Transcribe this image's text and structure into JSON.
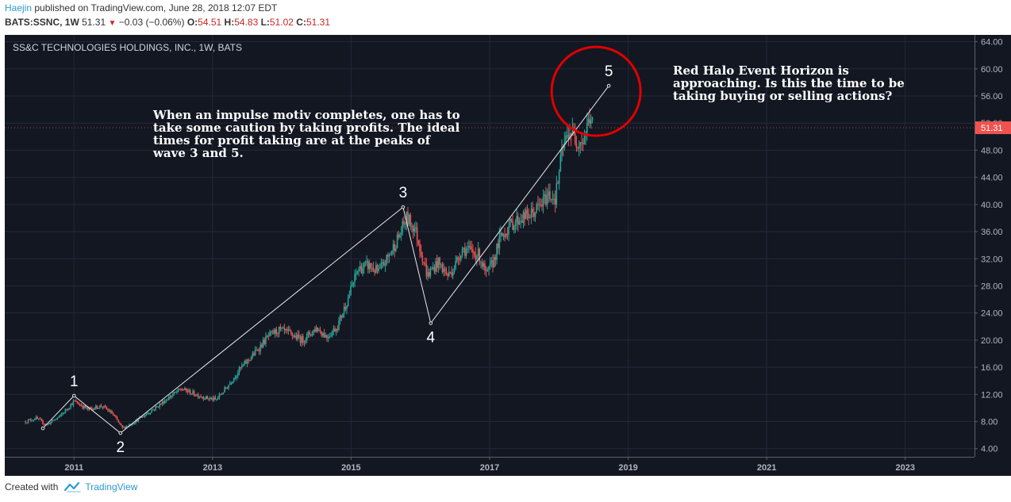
{
  "header": {
    "author": "Haejin",
    "published_text": "published on TradingView.com, June 28, 2018 12:07 EDT",
    "symbol_line": "BATS:SSNC, 1W",
    "last": "51.31",
    "change": "−0.03 (−0.06%)",
    "o_label": "O:",
    "o": "54.51",
    "h_label": "H:",
    "h": "54.83",
    "l_label": "L:",
    "l": "51.02",
    "c_label": "C:",
    "c": "51.31"
  },
  "footer": {
    "created_with": "Created with",
    "brand": "TradingView"
  },
  "colors": {
    "background": "#131722",
    "up": "#26a69a",
    "down": "#ef5350",
    "wave_line": "#e8e8e8",
    "halo": "#e00000",
    "price_badge": "#ef5350"
  },
  "chart_data": {
    "type": "candlestick",
    "title": "SS&C TECHNOLOGIES HOLDINGS, INC., 1W, BATS",
    "x_ticks": [
      "2011",
      "2013",
      "2015",
      "2017",
      "2019",
      "2021",
      "2023"
    ],
    "y_ticks": [
      "4.00",
      "8.00",
      "12.00",
      "16.00",
      "20.00",
      "24.00",
      "28.00",
      "32.00",
      "36.00",
      "40.00",
      "44.00",
      "48.00",
      "52.00",
      "56.00",
      "60.00",
      "64.00"
    ],
    "xlim": [
      2010.0,
      2024.0
    ],
    "ylim": [
      2.8,
      65.0
    ],
    "last_price": "51.31",
    "price_path": [
      [
        2010.3,
        8.0
      ],
      [
        2010.45,
        8.5
      ],
      [
        2010.6,
        7.5
      ],
      [
        2010.8,
        8.8
      ],
      [
        2011.0,
        11.0
      ],
      [
        2011.2,
        9.8
      ],
      [
        2011.4,
        10.3
      ],
      [
        2011.55,
        9.2
      ],
      [
        2011.7,
        7.0
      ],
      [
        2011.85,
        7.8
      ],
      [
        2012.0,
        8.8
      ],
      [
        2012.2,
        10.2
      ],
      [
        2012.4,
        11.8
      ],
      [
        2012.55,
        12.8
      ],
      [
        2012.7,
        12.2
      ],
      [
        2012.9,
        11.5
      ],
      [
        2013.05,
        11.2
      ],
      [
        2013.2,
        13.0
      ],
      [
        2013.4,
        15.8
      ],
      [
        2013.6,
        18.0
      ],
      [
        2013.8,
        20.5
      ],
      [
        2013.95,
        21.5
      ],
      [
        2014.1,
        21.0
      ],
      [
        2014.3,
        20.0
      ],
      [
        2014.5,
        21.8
      ],
      [
        2014.65,
        20.5
      ],
      [
        2014.8,
        22.0
      ],
      [
        2014.95,
        26.0
      ],
      [
        2015.1,
        30.5
      ],
      [
        2015.25,
        31.0
      ],
      [
        2015.4,
        30.0
      ],
      [
        2015.55,
        32.5
      ],
      [
        2015.7,
        35.5
      ],
      [
        2015.8,
        38.0
      ],
      [
        2015.92,
        36.5
      ],
      [
        2016.0,
        33.5
      ],
      [
        2016.1,
        29.5
      ],
      [
        2016.25,
        31.5
      ],
      [
        2016.4,
        29.5
      ],
      [
        2016.5,
        31.0
      ],
      [
        2016.6,
        33.5
      ],
      [
        2016.75,
        33.0
      ],
      [
        2016.85,
        32.5
      ],
      [
        2016.95,
        29.5
      ],
      [
        2017.05,
        31.5
      ],
      [
        2017.15,
        35.0
      ],
      [
        2017.3,
        37.0
      ],
      [
        2017.45,
        38.0
      ],
      [
        2017.6,
        38.5
      ],
      [
        2017.75,
        40.0
      ],
      [
        2017.85,
        41.5
      ],
      [
        2017.95,
        41.0
      ],
      [
        2018.05,
        48.0
      ],
      [
        2018.15,
        51.0
      ],
      [
        2018.25,
        49.5
      ],
      [
        2018.35,
        49.5
      ],
      [
        2018.45,
        53.0
      ],
      [
        2018.5,
        51.31
      ]
    ],
    "wave_points": [
      {
        "label": "",
        "x": 2010.55,
        "y": 7.0
      },
      {
        "label": "1",
        "x": 2011.0,
        "y": 11.8
      },
      {
        "label": "2",
        "x": 2011.67,
        "y": 6.3
      },
      {
        "label": "3",
        "x": 2015.75,
        "y": 39.6
      },
      {
        "label": "4",
        "x": 2016.15,
        "y": 22.5
      },
      {
        "label": "5",
        "x": 2018.72,
        "y": 57.5
      }
    ],
    "annotations": [
      "When an impulse motiv completes, one has to take some caution by taking profits. The ideal times for profit taking are at the peaks of wave 3 and 5.",
      "Red Halo Event Horizon is approaching. Is this the time to be taking buying or selling actions?"
    ]
  }
}
